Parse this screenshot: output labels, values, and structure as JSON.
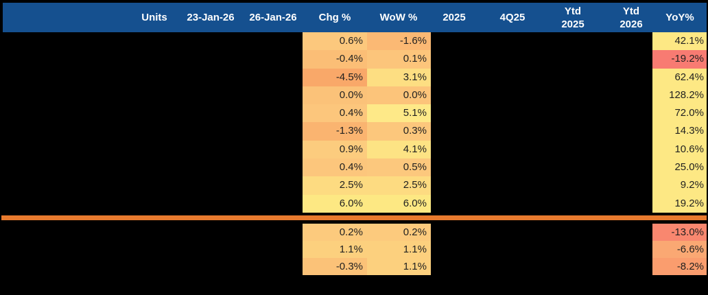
{
  "colors": {
    "page_bg": "#000000",
    "header_bg": "#15508F",
    "header_text": "#FFFFFF",
    "cell_text": "#1F1F1F",
    "divider": "#E87A2E"
  },
  "table": {
    "header": [
      "Units",
      "23-Jan-26",
      "26-Jan-26",
      "Chg %",
      "WoW %",
      "2025",
      "4Q25",
      "Ytd\n2025",
      "Ytd\n2026",
      "YoY%"
    ],
    "sections": [
      {
        "rows": [
          {
            "chg": "0.6%",
            "chg_bg": "#FCC87D",
            "wow": "-1.6%",
            "wow_bg": "#FBB974",
            "yoy": "42.1%",
            "yoy_bg": "#FDE884"
          },
          {
            "chg": "-0.4%",
            "chg_bg": "#FBBE76",
            "wow": "0.1%",
            "wow_bg": "#FCC57B",
            "yoy": "-19.2%",
            "yoy_bg": "#F87B72"
          },
          {
            "chg": "-4.5%",
            "chg_bg": "#F9A869",
            "wow": "3.1%",
            "wow_bg": "#FDDE82",
            "yoy": "62.4%",
            "yoy_bg": "#FDE884"
          },
          {
            "chg": "0.0%",
            "chg_bg": "#FBC279",
            "wow": "0.0%",
            "wow_bg": "#FCC47A",
            "yoy": "128.2%",
            "yoy_bg": "#FDE884"
          },
          {
            "chg": "0.4%",
            "chg_bg": "#FCC67C",
            "wow": "5.1%",
            "wow_bg": "#FEE988",
            "yoy": "72.0%",
            "yoy_bg": "#FDE884"
          },
          {
            "chg": "-1.3%",
            "chg_bg": "#FAB470",
            "wow": "0.3%",
            "wow_bg": "#FCC77C",
            "yoy": "14.3%",
            "yoy_bg": "#FDE884"
          },
          {
            "chg": "0.9%",
            "chg_bg": "#FCCC7E",
            "wow": "4.1%",
            "wow_bg": "#FDE384",
            "yoy": "10.6%",
            "yoy_bg": "#FDE884"
          },
          {
            "chg": "0.4%",
            "chg_bg": "#FCC67C",
            "wow": "0.5%",
            "wow_bg": "#FCC87D",
            "yoy": "25.0%",
            "yoy_bg": "#FDE884"
          },
          {
            "chg": "2.5%",
            "chg_bg": "#FDDB81",
            "wow": "2.5%",
            "wow_bg": "#FDDB81",
            "yoy": "9.2%",
            "yoy_bg": "#FDE884"
          },
          {
            "chg": "6.0%",
            "chg_bg": "#FDE883",
            "wow": "6.0%",
            "wow_bg": "#FDE883",
            "yoy": "19.2%",
            "yoy_bg": "#FDE884"
          }
        ]
      },
      {
        "rows": [
          {
            "chg": "0.2%",
            "chg_bg": "#FCCA7D",
            "wow": "0.2%",
            "wow_bg": "#FCCA7D",
            "yoy": "-13.0%",
            "yoy_bg": "#F9876F"
          },
          {
            "chg": "1.1%",
            "chg_bg": "#FCD07E",
            "wow": "1.1%",
            "wow_bg": "#FCD07E",
            "yoy": "-6.6%",
            "yoy_bg": "#FAA873"
          },
          {
            "chg": "-0.3%",
            "chg_bg": "#FBC278",
            "wow": "1.1%",
            "wow_bg": "#FCD07E",
            "yoy": "-8.2%",
            "yoy_bg": "#FA9D6E"
          }
        ]
      }
    ]
  }
}
